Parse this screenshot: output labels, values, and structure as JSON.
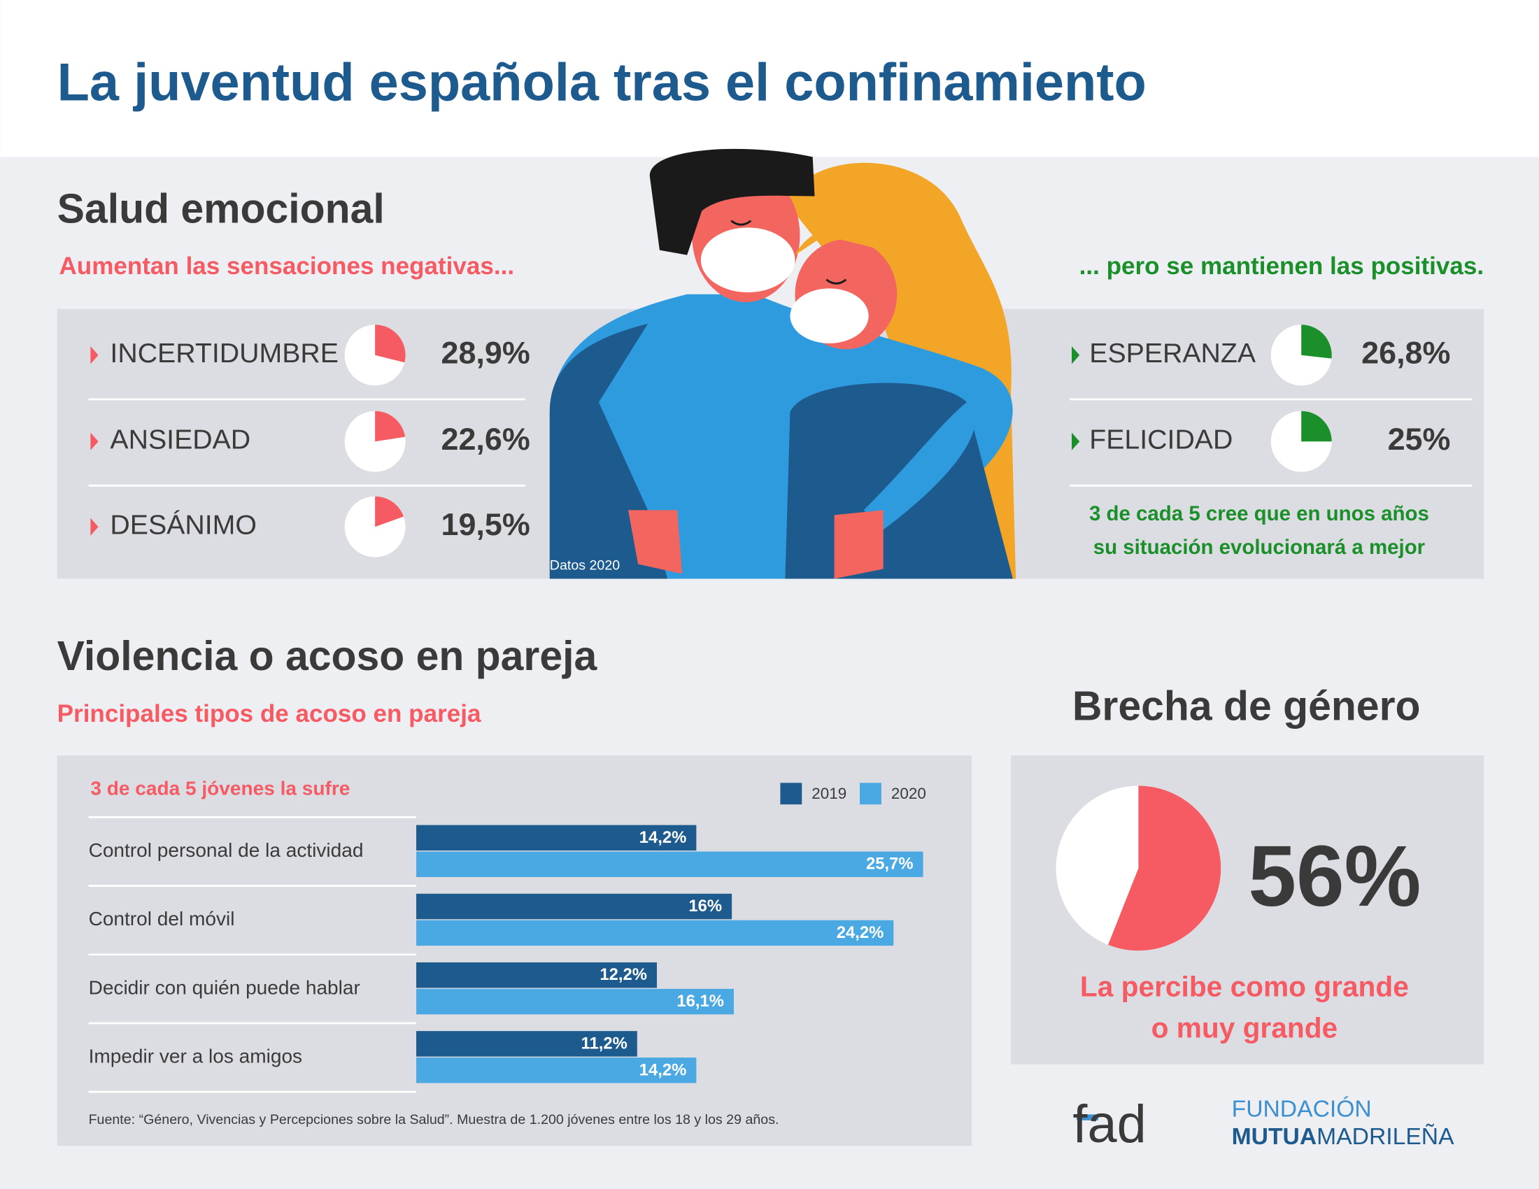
{
  "title": "La juventud española tras el confinamiento",
  "emotional": {
    "heading": "Salud emocional",
    "negative_subtitle": "Aumentan las sensaciones negativas...",
    "positive_subtitle": "... pero se mantienen las positivas.",
    "note": "Datos 2020",
    "positive_note": [
      "3 de cada 5 cree que en unos años",
      "su situación evolucionará a mejor"
    ]
  },
  "violence": {
    "heading": "Violencia o acoso en pareja",
    "subtitle": "Principales tipos de acoso en pareja",
    "source": "Fuente: “Género, Vivencias y Percepciones sobre la Salud”. Muestra de 1.200 jóvenes entre los 18 y los 29 años."
  },
  "gap": {
    "heading": "Brecha de género",
    "caption": [
      "La percibe como grande",
      "o muy grande"
    ]
  },
  "logos": {
    "fad": "fad",
    "fundacion": "FUNDACIÓN",
    "mutua": "MUTUA",
    "madrilena": "MADRILEÑA"
  },
  "chart_data": [
    {
      "type": "pie",
      "categories": [
        "INCERTIDUMBRE",
        "ANSIEDAD",
        "DESÁNIMO"
      ],
      "values": [
        28.9,
        22.6,
        19.5
      ],
      "value_labels": [
        "28,9%",
        "22,6%",
        "19,5%"
      ],
      "color": "#f65a63"
    },
    {
      "type": "pie",
      "categories": [
        "ESPERANZA",
        "FELICIDAD"
      ],
      "values": [
        26.8,
        25
      ],
      "value_labels": [
        "26,8%",
        "25%"
      ],
      "color": "#1a8f2a"
    },
    {
      "type": "hbar",
      "title": "3 de cada 5 jóvenes la sufre",
      "categories": [
        "Control personal de la actividad",
        "Control del móvil",
        "Decidir con quién puede hablar",
        "Impedir ver a los amigos"
      ],
      "series": [
        {
          "name": "2019",
          "color": "#1d5a8e",
          "values": [
            14.2,
            16,
            12.2,
            11.2
          ],
          "value_labels": [
            "14,2%",
            "16%",
            "12,2%",
            "11,2%"
          ]
        },
        {
          "name": "2020",
          "color": "#4aa9e3",
          "values": [
            25.7,
            24.2,
            16.1,
            14.2
          ],
          "value_labels": [
            "25,7%",
            "24,2%",
            "16,1%",
            "14,2%"
          ]
        }
      ]
    },
    {
      "type": "pie",
      "values": [
        56
      ],
      "value_labels": [
        "56%"
      ],
      "color": "#f65a63"
    }
  ]
}
